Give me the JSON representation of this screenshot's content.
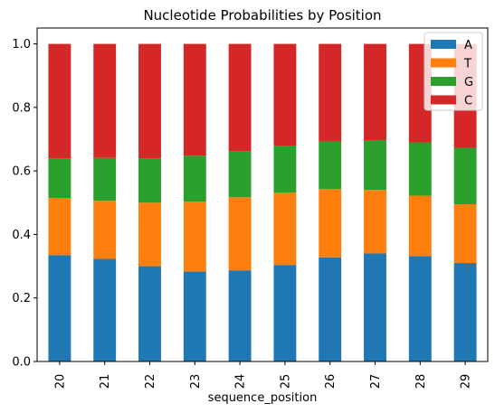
{
  "chart_data": {
    "type": "bar",
    "stacked": true,
    "title": "Nucleotide Probabilities by Position",
    "xlabel": "sequence_position",
    "ylabel": "",
    "ylim": [
      0,
      1.05
    ],
    "yticks": [
      "0.0",
      "0.2",
      "0.4",
      "0.6",
      "0.8",
      "1.0"
    ],
    "categories": [
      "20",
      "21",
      "22",
      "23",
      "24",
      "25",
      "26",
      "27",
      "28",
      "29"
    ],
    "legend_position": "top-right",
    "grid": false,
    "series": [
      {
        "name": "A",
        "color": "#1f77b4",
        "values": [
          0.335,
          0.323,
          0.3,
          0.283,
          0.287,
          0.304,
          0.328,
          0.34,
          0.332,
          0.31
        ]
      },
      {
        "name": "T",
        "color": "#ff7f0e",
        "values": [
          0.18,
          0.183,
          0.2,
          0.22,
          0.23,
          0.228,
          0.215,
          0.2,
          0.19,
          0.185
        ]
      },
      {
        "name": "G",
        "color": "#2ca02c",
        "values": [
          0.125,
          0.135,
          0.14,
          0.145,
          0.145,
          0.148,
          0.15,
          0.157,
          0.168,
          0.178
        ]
      },
      {
        "name": "C",
        "color": "#d62728",
        "values": [
          0.36,
          0.359,
          0.36,
          0.352,
          0.338,
          0.32,
          0.307,
          0.303,
          0.31,
          0.327
        ]
      }
    ]
  }
}
